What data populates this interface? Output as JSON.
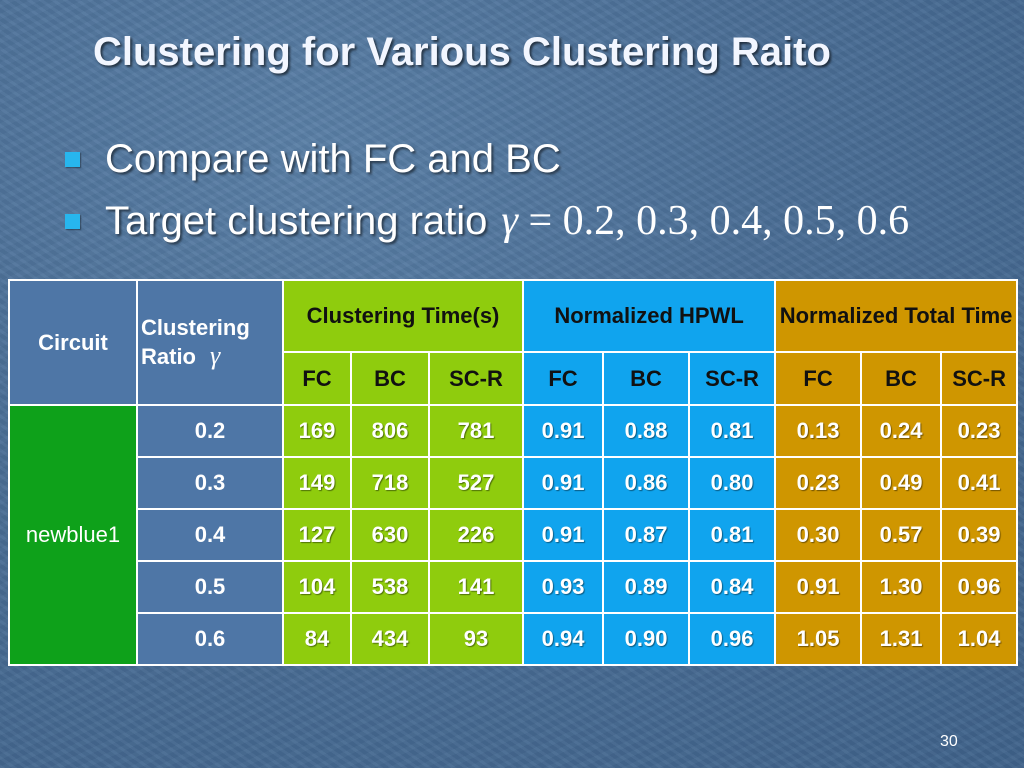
{
  "slide": {
    "title": "Clustering for Various Clustering Raito",
    "bullets": [
      {
        "text": "Compare with FC and BC"
      },
      {
        "text": "Target clustering ratio",
        "math_symbol": "γ",
        "math_rest": "= 0.2, 0.3, 0.4, 0.5, 0.6"
      }
    ],
    "page_number": "30"
  },
  "table": {
    "col_circuit": "Circuit",
    "col_ratio": "Clustering Ratio",
    "col_ratio_symbol": "γ",
    "groups": [
      {
        "label": "Clustering Time(s)",
        "color": "#8fcc0d"
      },
      {
        "label": "Normalized HPWL",
        "color": "#10a4ee"
      },
      {
        "label": "Normalized Total Time",
        "color": "#cf9600"
      }
    ],
    "subheaders": [
      "FC",
      "BC",
      "SC-R",
      "FC",
      "BC",
      "SC-R",
      "FC",
      "BC",
      "SC-R"
    ],
    "circuit_name": "newblue1",
    "rows": [
      {
        "ratio": "0.2",
        "values": [
          "169",
          "806",
          "781",
          "0.91",
          "0.88",
          "0.81",
          "0.13",
          "0.24",
          "0.23"
        ]
      },
      {
        "ratio": "0.3",
        "values": [
          "149",
          "718",
          "527",
          "0.91",
          "0.86",
          "0.80",
          "0.23",
          "0.49",
          "0.41"
        ]
      },
      {
        "ratio": "0.4",
        "values": [
          "127",
          "630",
          "226",
          "0.91",
          "0.87",
          "0.81",
          "0.30",
          "0.57",
          "0.39"
        ]
      },
      {
        "ratio": "0.5",
        "values": [
          "104",
          "538",
          "141",
          "0.93",
          "0.89",
          "0.84",
          "0.91",
          "1.30",
          "0.96"
        ]
      },
      {
        "ratio": "0.6",
        "values": [
          "84",
          "434",
          "93",
          "0.94",
          "0.90",
          "0.96",
          "1.05",
          "1.31",
          "1.04"
        ]
      }
    ]
  },
  "colors": {
    "background": "#4a6e96",
    "bullet": "#27b6ee",
    "steel": "#4e76a6",
    "lime": "#8fcc0d",
    "cyan": "#10a4ee",
    "gold": "#cf9600",
    "green": "#0ea11a"
  }
}
